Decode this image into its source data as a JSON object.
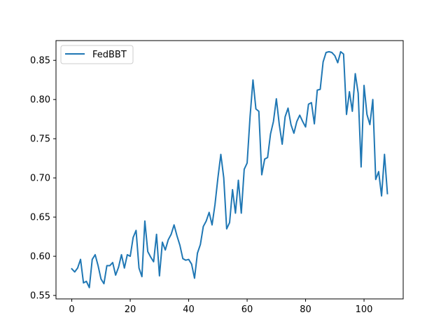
{
  "chart_data": {
    "type": "line",
    "title": "",
    "xlabel": "",
    "ylabel": "",
    "xlim": [
      -5.4,
      113.4
    ],
    "ylim": [
      0.5456,
      0.8752
    ],
    "xticks": [
      0,
      20,
      40,
      60,
      80,
      100
    ],
    "xtick_labels": [
      "0",
      "20",
      "40",
      "60",
      "80",
      "100"
    ],
    "yticks": [
      0.55,
      0.6,
      0.65,
      0.7,
      0.75,
      0.8,
      0.85
    ],
    "ytick_labels": [
      "0.55",
      "0.60",
      "0.65",
      "0.70",
      "0.75",
      "0.80",
      "0.85"
    ],
    "grid": false,
    "legend": {
      "position": "top-left"
    },
    "series": [
      {
        "name": "FedBBT",
        "color": "#1f77b4",
        "x": [
          0,
          1,
          2,
          3,
          4,
          5,
          6,
          7,
          8,
          9,
          10,
          11,
          12,
          13,
          14,
          15,
          16,
          17,
          18,
          19,
          20,
          21,
          22,
          23,
          24,
          25,
          26,
          27,
          28,
          29,
          30,
          31,
          32,
          33,
          34,
          35,
          36,
          37,
          38,
          39,
          40,
          41,
          42,
          43,
          44,
          45,
          46,
          47,
          48,
          49,
          50,
          51,
          52,
          53,
          54,
          55,
          56,
          57,
          58,
          59,
          60,
          61,
          62,
          63,
          64,
          65,
          66,
          67,
          68,
          69,
          70,
          71,
          72,
          73,
          74,
          75,
          76,
          77,
          78,
          79,
          80,
          81,
          82,
          83,
          84,
          85,
          86,
          87,
          88,
          89,
          90,
          91,
          92,
          93,
          94,
          95,
          96,
          97,
          98,
          99,
          100,
          101,
          102,
          103,
          104,
          105,
          106,
          107,
          108
        ],
        "values": [
          0.584,
          0.58,
          0.585,
          0.596,
          0.566,
          0.568,
          0.56,
          0.596,
          0.602,
          0.588,
          0.571,
          0.565,
          0.588,
          0.588,
          0.592,
          0.576,
          0.586,
          0.602,
          0.585,
          0.602,
          0.6,
          0.624,
          0.633,
          0.585,
          0.574,
          0.645,
          0.606,
          0.599,
          0.593,
          0.628,
          0.575,
          0.618,
          0.608,
          0.621,
          0.628,
          0.64,
          0.626,
          0.614,
          0.597,
          0.595,
          0.596,
          0.59,
          0.572,
          0.604,
          0.615,
          0.638,
          0.645,
          0.656,
          0.64,
          0.666,
          0.7,
          0.73,
          0.7,
          0.635,
          0.643,
          0.685,
          0.655,
          0.697,
          0.655,
          0.711,
          0.719,
          0.778,
          0.825,
          0.788,
          0.785,
          0.704,
          0.724,
          0.726,
          0.756,
          0.772,
          0.801,
          0.768,
          0.743,
          0.778,
          0.789,
          0.768,
          0.757,
          0.772,
          0.78,
          0.772,
          0.765,
          0.794,
          0.796,
          0.769,
          0.812,
          0.813,
          0.848,
          0.86,
          0.861,
          0.86,
          0.856,
          0.847,
          0.861,
          0.858,
          0.781,
          0.81,
          0.785,
          0.833,
          0.808,
          0.714,
          0.818,
          0.781,
          0.768,
          0.8,
          0.698,
          0.708,
          0.677,
          0.73,
          0.68
        ]
      }
    ]
  }
}
